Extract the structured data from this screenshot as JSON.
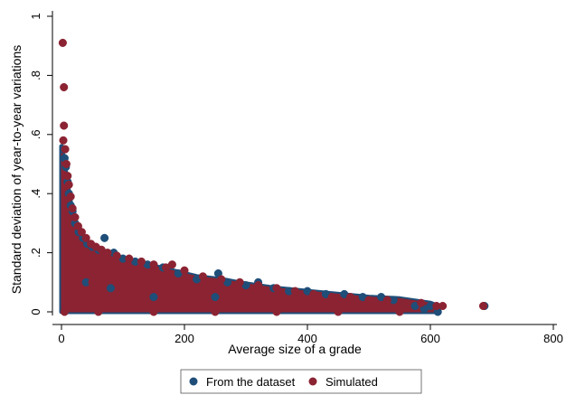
{
  "chart_data": {
    "type": "scatter",
    "title": "",
    "xlabel": "Average size of a grade",
    "ylabel": "Standard deviation of year-to-year variations",
    "xlim": [
      0,
      800
    ],
    "ylim": [
      0,
      1
    ],
    "x_ticks": [
      0,
      200,
      400,
      600,
      800
    ],
    "x_tick_labels": [
      "0",
      "200",
      "400",
      "600",
      "800"
    ],
    "y_ticks": [
      0,
      0.2,
      0.4,
      0.6,
      0.8,
      1
    ],
    "y_tick_labels": [
      "0",
      ".2",
      ".4",
      ".6",
      ".8",
      "1"
    ],
    "grid": false,
    "legend_position": "bottom",
    "series": [
      {
        "name": "From the dataset",
        "color": "#1f4e79",
        "points": [
          [
            3,
            0.55
          ],
          [
            5,
            0.52
          ],
          [
            7,
            0.49
          ],
          [
            10,
            0.44
          ],
          [
            12,
            0.4
          ],
          [
            15,
            0.36
          ],
          [
            18,
            0.34
          ],
          [
            22,
            0.3
          ],
          [
            28,
            0.27
          ],
          [
            35,
            0.25
          ],
          [
            42,
            0.23
          ],
          [
            50,
            0.22
          ],
          [
            60,
            0.21
          ],
          [
            70,
            0.25
          ],
          [
            85,
            0.2
          ],
          [
            100,
            0.18
          ],
          [
            120,
            0.17
          ],
          [
            140,
            0.16
          ],
          [
            165,
            0.15
          ],
          [
            190,
            0.13
          ],
          [
            220,
            0.11
          ],
          [
            255,
            0.13
          ],
          [
            270,
            0.1
          ],
          [
            300,
            0.09
          ],
          [
            320,
            0.1
          ],
          [
            345,
            0.08
          ],
          [
            370,
            0.07
          ],
          [
            400,
            0.07
          ],
          [
            430,
            0.06
          ],
          [
            460,
            0.06
          ],
          [
            490,
            0.05
          ],
          [
            520,
            0.05
          ],
          [
            540,
            0.04
          ],
          [
            560,
            0.03
          ],
          [
            575,
            0.02
          ],
          [
            590,
            0.01
          ],
          [
            600,
            0.02
          ],
          [
            612,
            0.0
          ],
          [
            688,
            0.02
          ],
          [
            250,
            0.05
          ],
          [
            150,
            0.05
          ],
          [
            80,
            0.08
          ],
          [
            40,
            0.1
          ]
        ]
      },
      {
        "name": "Simulated",
        "color": "#8b2332",
        "points": [
          [
            2,
            0.91
          ],
          [
            4,
            0.76
          ],
          [
            4,
            0.63
          ],
          [
            3,
            0.58
          ],
          [
            6,
            0.55
          ],
          [
            8,
            0.5
          ],
          [
            10,
            0.46
          ],
          [
            12,
            0.43
          ],
          [
            15,
            0.39
          ],
          [
            18,
            0.35
          ],
          [
            22,
            0.32
          ],
          [
            27,
            0.29
          ],
          [
            33,
            0.27
          ],
          [
            40,
            0.25
          ],
          [
            48,
            0.23
          ],
          [
            56,
            0.22
          ],
          [
            65,
            0.21
          ],
          [
            75,
            0.2
          ],
          [
            90,
            0.19
          ],
          [
            110,
            0.18
          ],
          [
            130,
            0.17
          ],
          [
            150,
            0.16
          ],
          [
            170,
            0.15
          ],
          [
            180,
            0.16
          ],
          [
            200,
            0.14
          ],
          [
            230,
            0.12
          ],
          [
            260,
            0.11
          ],
          [
            290,
            0.1
          ],
          [
            320,
            0.09
          ],
          [
            350,
            0.08
          ],
          [
            380,
            0.07
          ],
          [
            410,
            0.06
          ],
          [
            440,
            0.05
          ],
          [
            470,
            0.05
          ],
          [
            500,
            0.04
          ],
          [
            530,
            0.04
          ],
          [
            560,
            0.03
          ],
          [
            585,
            0.03
          ],
          [
            610,
            0.02
          ],
          [
            620,
            0.02
          ],
          [
            686,
            0.02
          ],
          [
            300,
            0.05
          ],
          [
            200,
            0.06
          ],
          [
            100,
            0.07
          ],
          [
            50,
            0.1
          ],
          [
            20,
            0.05
          ],
          [
            5,
            0.0
          ],
          [
            60,
            0.0
          ],
          [
            150,
            0.0
          ],
          [
            250,
            0.0
          ],
          [
            350,
            0.0
          ],
          [
            450,
            0.0
          ],
          [
            550,
            0.0
          ]
        ]
      }
    ],
    "cloud_boundary": {
      "description_values": "upper edge of the dense point cloud in data units",
      "upper": [
        [
          0,
          0.56
        ],
        [
          5,
          0.5
        ],
        [
          10,
          0.43
        ],
        [
          15,
          0.37
        ],
        [
          20,
          0.32
        ],
        [
          30,
          0.27
        ],
        [
          40,
          0.24
        ],
        [
          60,
          0.21
        ],
        [
          80,
          0.2
        ],
        [
          100,
          0.18
        ],
        [
          140,
          0.16
        ],
        [
          180,
          0.14
        ],
        [
          220,
          0.12
        ],
        [
          260,
          0.11
        ],
        [
          300,
          0.095
        ],
        [
          350,
          0.08
        ],
        [
          400,
          0.07
        ],
        [
          450,
          0.06
        ],
        [
          500,
          0.05
        ],
        [
          550,
          0.045
        ],
        [
          600,
          0.03
        ],
        [
          612,
          0.02
        ],
        [
          612,
          0.0
        ]
      ]
    }
  }
}
